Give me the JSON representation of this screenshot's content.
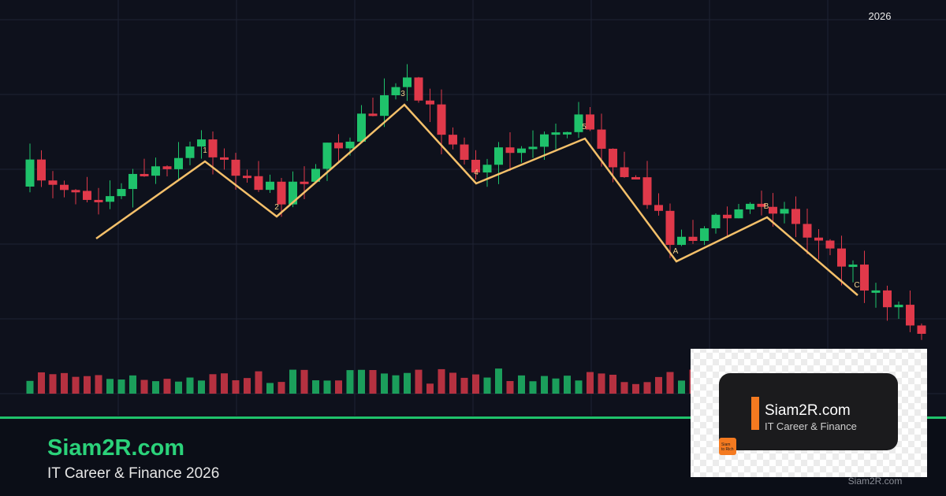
{
  "year_label": "2026",
  "waves": [
    "1",
    "2",
    "3",
    "4",
    "5",
    "A",
    "B",
    "C"
  ],
  "brand": {
    "name": "Siam2R.com",
    "tagline": "IT Career & Finance 2026"
  },
  "card": {
    "name": "Siam2R.com",
    "tagline": "IT Career & Finance",
    "logo": [
      "Siam",
      "to Rich"
    ]
  },
  "watermark": "Siam2R.com"
}
